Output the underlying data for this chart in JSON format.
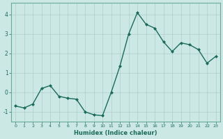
{
  "x": [
    0,
    1,
    2,
    3,
    4,
    5,
    6,
    7,
    8,
    9,
    10,
    11,
    12,
    13,
    14,
    15,
    16,
    17,
    18,
    19,
    20,
    21,
    22,
    23
  ],
  "y": [
    -0.7,
    -0.8,
    -0.6,
    0.2,
    0.35,
    -0.2,
    -0.3,
    -0.35,
    -1.0,
    -1.15,
    -1.2,
    0.0,
    1.35,
    3.0,
    4.1,
    3.5,
    3.3,
    2.6,
    2.1,
    2.55,
    2.45,
    2.2,
    1.5,
    1.85
  ],
  "line_color": "#1a6b5a",
  "marker": "D",
  "marker_size": 2.0,
  "linewidth": 1.0,
  "xlabel": "Humidex (Indice chaleur)",
  "xlim": [
    -0.5,
    23.5
  ],
  "ylim": [
    -1.5,
    4.6
  ],
  "yticks": [
    -1,
    0,
    1,
    2,
    3,
    4
  ],
  "xticks": [
    0,
    1,
    2,
    3,
    4,
    5,
    6,
    7,
    8,
    9,
    10,
    11,
    12,
    13,
    14,
    15,
    16,
    17,
    18,
    19,
    20,
    21,
    22,
    23
  ],
  "xtick_labels": [
    "0",
    "1",
    "2",
    "3",
    "4",
    "5",
    "6",
    "7",
    "8",
    "9",
    "10",
    "11",
    "12",
    "13",
    "14",
    "15",
    "16",
    "17",
    "18",
    "19",
    "20",
    "21",
    "22",
    "23"
  ],
  "background_color": "#cce8e4",
  "grid_color": "#b0ceca",
  "tick_color": "#1a6b5a",
  "label_color": "#1a6b5a",
  "spine_color": "#6aaa9a"
}
